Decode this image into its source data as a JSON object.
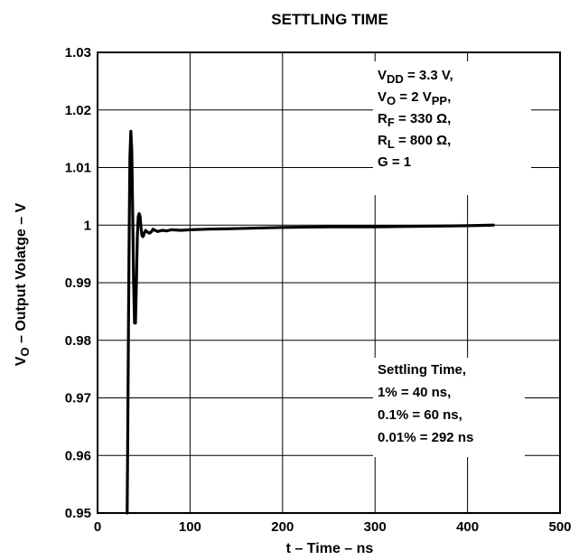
{
  "chart_data": {
    "type": "line",
    "title": "SETTLING TIME",
    "xlabel": "t – Time – ns",
    "ylabel": {
      "pre": "V",
      "sub": "O",
      "post": " – Output Volatge – V"
    },
    "xlim": [
      0,
      500
    ],
    "ylim": [
      0.95,
      1.03
    ],
    "xticks": [
      0,
      100,
      200,
      300,
      400,
      500
    ],
    "yticks": [
      0.95,
      0.96,
      0.97,
      0.98,
      0.99,
      1,
      1.01,
      1.02,
      1.03
    ],
    "xtick_labels": [
      "0",
      "100",
      "200",
      "300",
      "400",
      "500"
    ],
    "ytick_labels": [
      "0.95",
      "0.96",
      "0.97",
      "0.98",
      "0.99",
      "1",
      "1.01",
      "1.02",
      "1.03"
    ],
    "grid": true,
    "series": [
      {
        "x": [
          32,
          32.5,
          33,
          33.5,
          34,
          34.5,
          35,
          36,
          37,
          38,
          39,
          40,
          41,
          42,
          43,
          44,
          45,
          46,
          47,
          48,
          49,
          50,
          51,
          52,
          54,
          56,
          58,
          60,
          62,
          65,
          70,
          75,
          80,
          90,
          100,
          120,
          150,
          200,
          250,
          300,
          350,
          400,
          428
        ],
        "y": [
          0.95,
          0.96,
          0.972,
          0.984,
          0.995,
          1.004,
          1.012,
          1.0163,
          1.013,
          1.002,
          0.99,
          0.983,
          0.983,
          0.99,
          0.998,
          1.0015,
          1.002,
          1.0015,
          0.9995,
          0.9982,
          0.998,
          0.9983,
          0.9988,
          0.9991,
          0.9988,
          0.9986,
          0.9988,
          0.9993,
          0.9991,
          0.9989,
          0.9991,
          0.999,
          0.9992,
          0.9991,
          0.9992,
          0.9993,
          0.9994,
          0.9996,
          0.9997,
          0.9997,
          0.9998,
          0.9999,
          1.0
        ]
      }
    ],
    "annotations": {
      "conditions": [
        {
          "pre": "V",
          "sub": "DD",
          "post": " = 3.3 V,"
        },
        {
          "pre": "V",
          "sub": "O",
          "post": " = 2 V",
          "sub2": "PP",
          "post2": ","
        },
        {
          "pre": "R",
          "sub": "F",
          "post": " = 330 Ω,"
        },
        {
          "pre": "R",
          "sub": "L",
          "post": " = 800 Ω,"
        },
        {
          "pre": "G = 1"
        }
      ],
      "settling": [
        "Settling Time,",
        "1% = 40 ns,",
        "0.1% = 60 ns,",
        "0.01% = 292 ns"
      ]
    }
  }
}
